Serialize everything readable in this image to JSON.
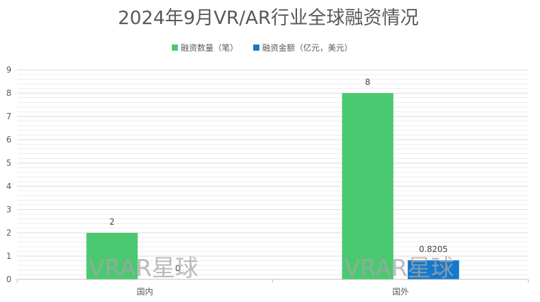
{
  "chart_data": {
    "type": "bar",
    "title": "2024年9月VR/AR行业全球融资情况",
    "categories": [
      "国内",
      "国外"
    ],
    "series": [
      {
        "name": "融资数量（笔）",
        "values": [
          2,
          8
        ],
        "color": "#4ac971",
        "labels": [
          "2",
          "8"
        ]
      },
      {
        "name": "融资金额（亿元，美元）",
        "values": [
          0,
          0.8205
        ],
        "color": "#1479cc",
        "labels": [
          "0",
          "0.8205"
        ]
      }
    ],
    "ylim": [
      0,
      9
    ],
    "yticks": [
      "0",
      "1",
      "2",
      "3",
      "4",
      "5",
      "6",
      "7",
      "8",
      "9"
    ],
    "grid": true,
    "minor_grid": true,
    "legend_position": "top",
    "xlabel": "",
    "ylabel": ""
  },
  "watermark": "VRAR星球"
}
